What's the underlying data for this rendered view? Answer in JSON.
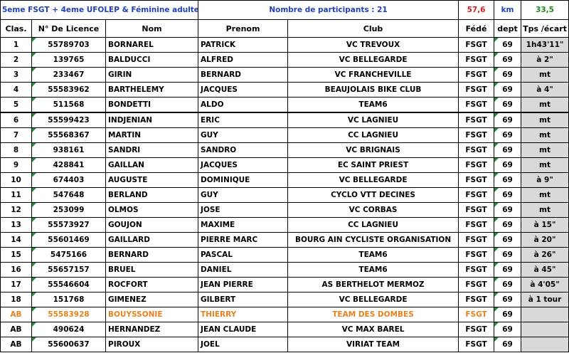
{
  "header": {
    "category": "5eme FSGT + 4eme UFOLEP & Féminine adulte",
    "participants": "Nombre de participants : 21",
    "distance": "57,6",
    "unit": "km",
    "speed": "33,5"
  },
  "columns": [
    "Clas.",
    "N° De Licence",
    "Nom",
    "Prenom",
    "Club",
    "Fédé",
    "dept",
    "Tps /écart"
  ],
  "rows": [
    {
      "clas": "1",
      "licence": "55789703",
      "nom": "BORNAREL",
      "prenom": "PATRICK",
      "club": "VC TREVOUX",
      "fede": "FSGT",
      "dept": "69",
      "tps": "1h43'11\""
    },
    {
      "clas": "2",
      "licence": "139765",
      "nom": "BALDUCCI",
      "prenom": "ALFRED",
      "club": "VC BELLEGARDE",
      "fede": "FSGT",
      "dept": "69",
      "tps": "à 2\""
    },
    {
      "clas": "3",
      "licence": "233467",
      "nom": "GIRIN",
      "prenom": "BERNARD",
      "club": "VC FRANCHEVILLE",
      "fede": "FSGT",
      "dept": "69",
      "tps": "mt"
    },
    {
      "clas": "4",
      "licence": "55583962",
      "nom": "BARTHELEMY",
      "prenom": "JACQUES",
      "club": "BEAUJOLAIS BIKE CLUB",
      "fede": "FSGT",
      "dept": "69",
      "tps": "à 4\""
    },
    {
      "clas": "5",
      "licence": "511568",
      "nom": "BONDETTI",
      "prenom": "ALDO",
      "club": "TEAM6",
      "fede": "FSGT",
      "dept": "69",
      "tps": "mt"
    },
    {
      "clas": "6",
      "licence": "55599423",
      "nom": "INDJENIAN",
      "prenom": "ERIC",
      "club": "VC LAGNIEU",
      "fede": "FSGT",
      "dept": "69",
      "tps": "mt"
    },
    {
      "clas": "7",
      "licence": "55568367",
      "nom": "MARTIN",
      "prenom": "GUY",
      "club": "CC LAGNIEU",
      "fede": "FSGT",
      "dept": "69",
      "tps": "mt"
    },
    {
      "clas": "8",
      "licence": "938161",
      "nom": "SANDRI",
      "prenom": "SANDRO",
      "club": "VC BRIGNAIS",
      "fede": "FSGT",
      "dept": "69",
      "tps": "mt"
    },
    {
      "clas": "9",
      "licence": "428841",
      "nom": "GAILLAN",
      "prenom": "JACQUES",
      "club": "EC SAINT PRIEST",
      "fede": "FSGT",
      "dept": "69",
      "tps": "mt"
    },
    {
      "clas": "10",
      "licence": "674403",
      "nom": "AUGUSTE",
      "prenom": "DOMINIQUE",
      "club": "VC BELLEGARDE",
      "fede": "FSGT",
      "dept": "69",
      "tps": "à 9\""
    },
    {
      "clas": "11",
      "licence": "547648",
      "nom": "BERLAND",
      "prenom": "GUY",
      "club": "CYCLO VTT DECINES",
      "fede": "FSGT",
      "dept": "69",
      "tps": "mt"
    },
    {
      "clas": "12",
      "licence": "253099",
      "nom": "OLMOS",
      "prenom": "JOSE",
      "club": "VC CORBAS",
      "fede": "FSGT",
      "dept": "69",
      "tps": "mt"
    },
    {
      "clas": "13",
      "licence": "55573927",
      "nom": "GOUJON",
      "prenom": "MAXIME",
      "club": "CC LAGNIEU",
      "fede": "FSGT",
      "dept": "69",
      "tps": "à 15\""
    },
    {
      "clas": "14",
      "licence": "55601469",
      "nom": "GAILLARD",
      "prenom": "PIERRE MARC",
      "club": "BOURG AIN CYCLISTE ORGANISATION",
      "fede": "FSGT",
      "dept": "69",
      "tps": "à 20\""
    },
    {
      "clas": "15",
      "licence": "5475166",
      "nom": "BERNARD",
      "prenom": "PASCAL",
      "club": "TEAM6",
      "fede": "FSGT",
      "dept": "69",
      "tps": "à 26\""
    },
    {
      "clas": "16",
      "licence": "55657157",
      "nom": "BRUEL",
      "prenom": "DANIEL",
      "club": "TEAM6",
      "fede": "FSGT",
      "dept": "69",
      "tps": "à 45\""
    },
    {
      "clas": "17",
      "licence": "55546604",
      "nom": "ROCFORT",
      "prenom": "JEAN PIERRE",
      "club": "AS BERTHELOT MERMOZ",
      "fede": "FSGT",
      "dept": "69",
      "tps": "à 4'05\""
    },
    {
      "clas": "18",
      "licence": "151768",
      "nom": "GIMENEZ",
      "prenom": "GILBERT",
      "club": "VC BELLEGARDE",
      "fede": "FSGT",
      "dept": "69",
      "tps": "à 1 tour"
    },
    {
      "clas": "AB",
      "licence": "55583928",
      "nom": "BOUYSSONIE",
      "prenom": "THIERRY",
      "club": "TEAM DES DOMBES",
      "fede": "FSGT",
      "dept": "69",
      "tps": "",
      "highlight": true
    },
    {
      "clas": "AB",
      "licence": "490624",
      "nom": "HERNANDEZ",
      "prenom": "JEAN CLAUDE",
      "club": "VC MAX BAREL",
      "fede": "FSGT",
      "dept": "69",
      "tps": ""
    },
    {
      "clas": "AB",
      "licence": "55600637",
      "nom": "PIROUX",
      "prenom": "JOEL",
      "club": "VIRIAT TEAM",
      "fede": "FSGT",
      "dept": "69",
      "tps": ""
    }
  ],
  "colors": {
    "title_blue": "#1f3fbf",
    "distance_red": "#d02020",
    "speed_green": "#1e8a1e",
    "abandon_orange": "#e8821c",
    "time_cell_gray": "#d9d9d9",
    "marker_green": "#1f8f3a"
  }
}
